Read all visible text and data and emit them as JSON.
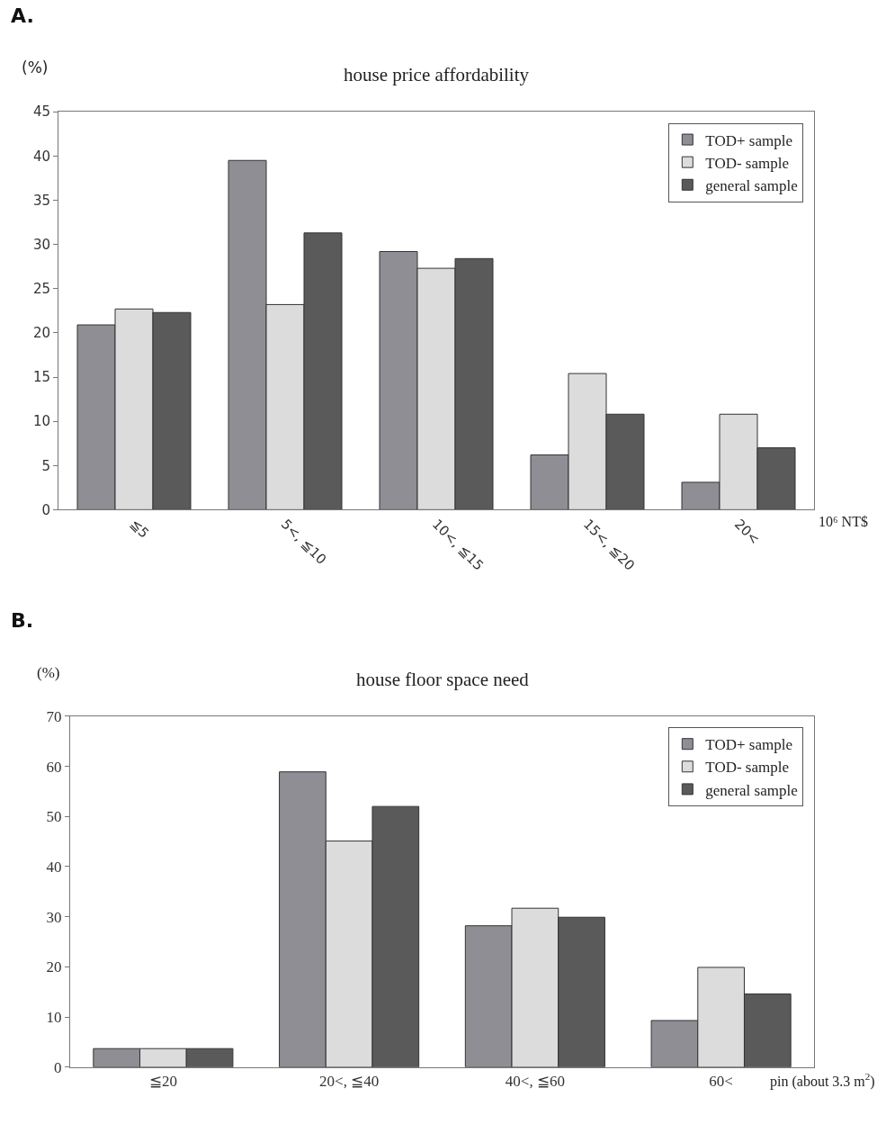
{
  "chart_data": [
    {
      "type": "bar",
      "title": "house price affordability",
      "ylabel": "(%)",
      "xlabel": "10⁶ NT$",
      "annotations": [
        "A."
      ],
      "categories": [
        "≦5",
        "5<, ≦10",
        "10<, ≦15",
        "15<, ≦20",
        "20<"
      ],
      "series": [
        {
          "name": "TOD+ sample",
          "color": "#8e8e94",
          "values": [
            20.9,
            39.5,
            29.2,
            6.2,
            3.1
          ]
        },
        {
          "name": "TOD- sample",
          "color": "#dcdcdc",
          "values": [
            22.7,
            23.2,
            27.3,
            15.4,
            10.8
          ]
        },
        {
          "name": "general sample",
          "color": "#5a5a5a",
          "values": [
            22.3,
            31.3,
            28.4,
            10.8,
            7.0
          ]
        }
      ],
      "ylim": [
        0,
        45
      ],
      "yticks": [
        0,
        5,
        10,
        15,
        20,
        25,
        30,
        35,
        40,
        45
      ],
      "legend": "top right"
    },
    {
      "type": "bar",
      "title": "house floor space need",
      "ylabel": "(%)",
      "xlabel": "pin (about 3.3 m$^{2}$)",
      "annotations": [
        "B."
      ],
      "categories": [
        "≦20",
        "20<, ≦40",
        "40<, ≦60",
        "60<"
      ],
      "series": [
        {
          "name": "TOD+ sample",
          "color": "#8e8e94",
          "values": [
            3.7,
            58.9,
            28.2,
            9.3
          ]
        },
        {
          "name": "TOD- sample",
          "color": "#dcdcdc",
          "values": [
            3.7,
            45.1,
            31.7,
            19.9
          ]
        },
        {
          "name": "general sample",
          "color": "#5a5a5a",
          "values": [
            3.7,
            52.0,
            29.9,
            14.6
          ]
        }
      ],
      "ylim": [
        0,
        70
      ],
      "yticks": [
        0,
        10,
        20,
        30,
        40,
        50,
        60,
        70
      ],
      "legend": "top right"
    }
  ]
}
